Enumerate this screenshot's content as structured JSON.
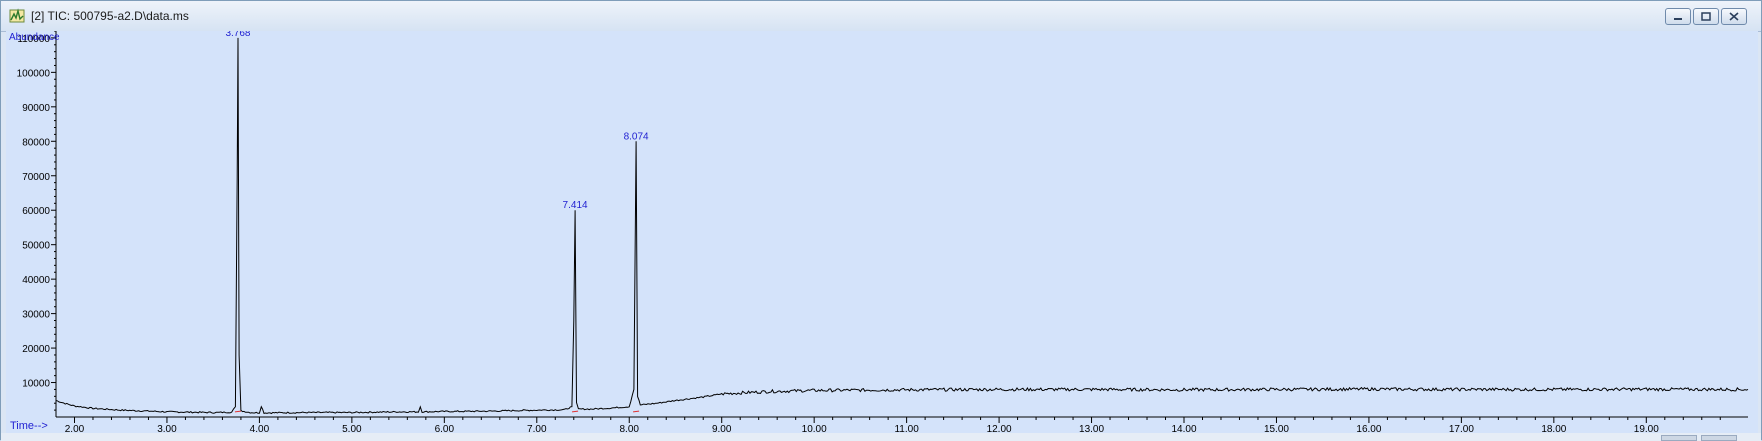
{
  "window": {
    "title": "[2] TIC: 500795-a2.D\\data.ms",
    "icon": "chromatogram-app-icon"
  },
  "colors": {
    "plot_background": "#d4e3fa",
    "trace": "#000000",
    "peak_label": "#1f1fd1",
    "baseline_marker": "#e03030",
    "axis_label": "#1f1fd1"
  },
  "chart_data": {
    "type": "line",
    "ylabel": "Abundance",
    "xlabel": "Time-->",
    "xlim": [
      1.8,
      20.1
    ],
    "ylim": [
      0,
      112000
    ],
    "x_ticks": [
      "2.00",
      "3.00",
      "4.00",
      "5.00",
      "6.00",
      "7.00",
      "8.00",
      "9.00",
      "10.00",
      "11.00",
      "12.00",
      "13.00",
      "14.00",
      "15.00",
      "16.00",
      "17.00",
      "18.00",
      "19.00"
    ],
    "y_ticks": [
      "10000",
      "20000",
      "30000",
      "40000",
      "50000",
      "60000",
      "70000",
      "80000",
      "90000",
      "100000",
      "110000"
    ],
    "x_tick_values": [
      2,
      3,
      4,
      5,
      6,
      7,
      8,
      9,
      10,
      11,
      12,
      13,
      14,
      15,
      16,
      17,
      18,
      19
    ],
    "y_tick_values": [
      10000,
      20000,
      30000,
      40000,
      50000,
      60000,
      70000,
      80000,
      90000,
      100000,
      110000
    ],
    "series": [
      {
        "x": [
          1.8,
          1.9,
          2.0,
          2.2,
          2.5,
          3.0,
          3.5,
          3.7,
          3.74,
          3.76,
          3.768,
          3.78,
          3.8,
          3.9,
          4.0,
          4.02,
          4.05,
          4.5,
          5.0,
          5.5,
          5.72,
          5.74,
          5.76,
          6.0,
          6.5,
          7.0,
          7.3,
          7.38,
          7.4,
          7.414,
          7.43,
          7.45,
          7.6,
          7.8,
          8.0,
          8.05,
          8.074,
          8.09,
          8.12,
          8.3,
          8.5,
          8.8,
          9.0,
          9.5,
          10.0,
          11.0,
          12.0,
          13.0,
          14.0,
          15.0,
          16.0,
          17.0,
          18.0,
          19.0,
          20.0,
          20.1
        ],
        "y": [
          4800,
          3900,
          3200,
          2500,
          2000,
          1500,
          1300,
          1400,
          3000,
          70000,
          110000,
          18000,
          1800,
          1300,
          1200,
          3200,
          1200,
          1300,
          1300,
          1500,
          1500,
          3000,
          1500,
          1600,
          1700,
          2000,
          2100,
          3000,
          28000,
          60000,
          4000,
          2300,
          2300,
          2600,
          3000,
          8000,
          80000,
          6000,
          3500,
          4000,
          4800,
          5800,
          6700,
          7400,
          7700,
          7900,
          8000,
          8000,
          7900,
          8000,
          8100,
          8000,
          8000,
          8050,
          8000,
          8000
        ]
      }
    ],
    "peaks": [
      {
        "time": 3.768,
        "label": "3.768",
        "height": 110000
      },
      {
        "time": 7.414,
        "label": "7.414",
        "height": 60000
      },
      {
        "time": 8.074,
        "label": "8.074",
        "height": 80000
      }
    ]
  }
}
